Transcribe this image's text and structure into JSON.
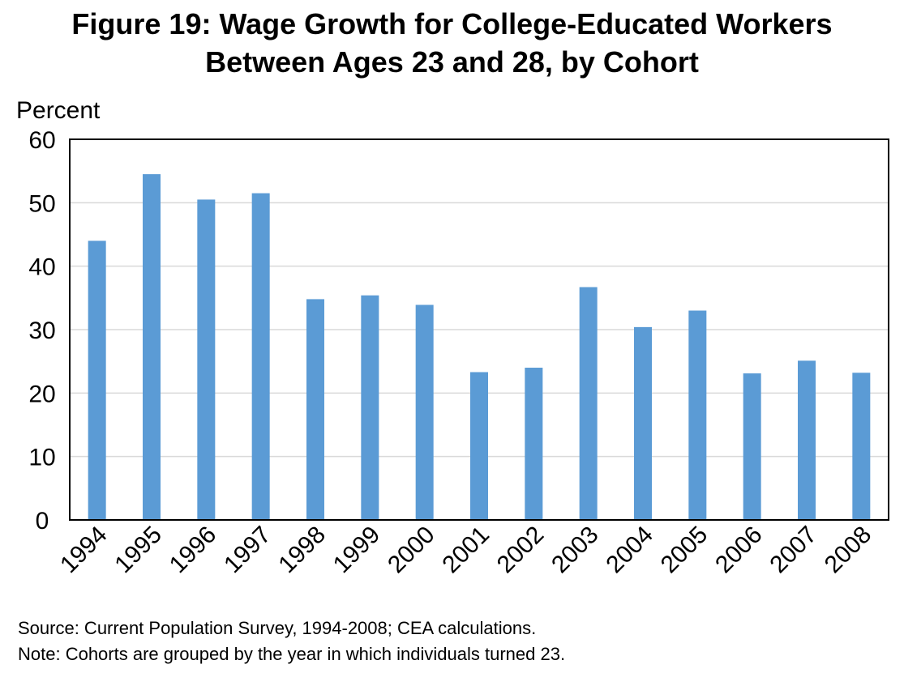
{
  "chart_data": {
    "type": "bar",
    "title_lines": [
      "Figure 19: Wage Growth for College-Educated Workers",
      "Between Ages 23 and 28, by Cohort"
    ],
    "ylabel": "Percent",
    "xlabel": "",
    "ylim": [
      0,
      60
    ],
    "yticks": [
      0,
      10,
      20,
      30,
      40,
      50,
      60
    ],
    "grid": true,
    "legend": "none",
    "bar_color": "#5b9bd5",
    "grid_color": "#d9d9d9",
    "categories": [
      "1994",
      "1995",
      "1996",
      "1997",
      "1998",
      "1999",
      "2000",
      "2001",
      "2002",
      "2003",
      "2004",
      "2005",
      "2006",
      "2007",
      "2008"
    ],
    "values": [
      44.0,
      54.5,
      50.5,
      51.5,
      34.8,
      35.4,
      33.9,
      23.3,
      24.0,
      36.7,
      30.4,
      33.0,
      23.1,
      25.1,
      23.2
    ]
  },
  "footnotes": {
    "source": "Source: Current Population Survey, 1994-2008; CEA calculations.",
    "note": "Note: Cohorts are grouped by the year in which individuals turned 23."
  }
}
